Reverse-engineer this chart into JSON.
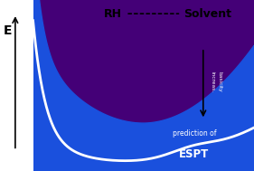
{
  "background_color": "#1a50dd",
  "fig_width": 2.81,
  "fig_height": 1.89,
  "dpi": 100,
  "title_text": "RH",
  "solvent_text": "Solvent",
  "ylabel": "E",
  "arrow_label": "increas.\nbasicity",
  "prediction_line1": "prediction of",
  "prediction_line2": "ESPT",
  "curve_colors": [
    "#ffff00",
    "#ffe000",
    "#ffaa00",
    "#ff6600",
    "#ff2200",
    "#cc0000",
    "#990022",
    "#660055",
    "#440077"
  ],
  "white_curve_color": "#ffffff",
  "xlim": [
    0,
    10
  ],
  "ylim": [
    0,
    1
  ]
}
